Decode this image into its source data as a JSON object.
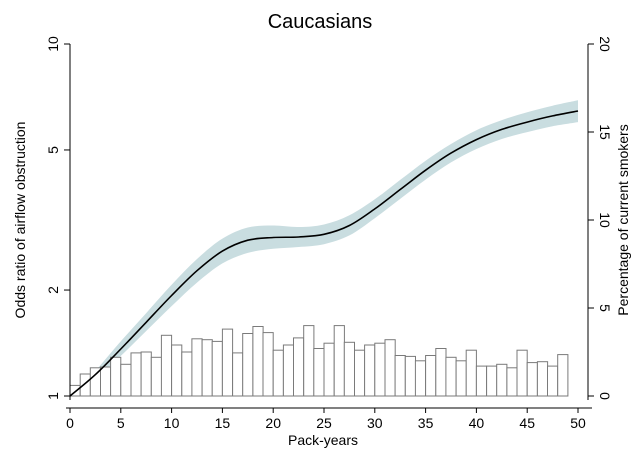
{
  "chart_data": {
    "type": "line",
    "title": "Caucasians",
    "xlabel": "Pack-years",
    "ylabel_left": "Odds ratio of airflow obstruction",
    "ylabel_right": "Percentage of current smokers",
    "x_ticks": [
      0,
      5,
      10,
      15,
      20,
      25,
      30,
      35,
      40,
      45,
      50
    ],
    "y_left_scale": "log",
    "y_left_ticks": [
      1,
      2,
      5,
      10
    ],
    "y_left_lim": [
      1,
      10
    ],
    "y_right_ticks": [
      0,
      5,
      10,
      15,
      20
    ],
    "y_right_lim": [
      0,
      20
    ],
    "xlim": [
      0,
      50
    ],
    "grid": false,
    "colors": {
      "line": "#000000",
      "ci_band": "#c9dde0",
      "bars": "#ffffff",
      "bar_edge": "#7a7a7a"
    },
    "series": [
      {
        "x": [
          0,
          2.5,
          5,
          7.5,
          10,
          12.5,
          15,
          17.5,
          20,
          22.5,
          25,
          27.5,
          30,
          32.5,
          35,
          37.5,
          40,
          42.5,
          45,
          47.5,
          50
        ],
        "or": [
          1.0,
          1.15,
          1.36,
          1.62,
          1.93,
          2.27,
          2.58,
          2.77,
          2.82,
          2.83,
          2.88,
          3.05,
          3.4,
          3.86,
          4.38,
          4.9,
          5.35,
          5.72,
          6.0,
          6.25,
          6.45
        ],
        "lower": [
          1.0,
          1.12,
          1.3,
          1.53,
          1.8,
          2.1,
          2.38,
          2.55,
          2.62,
          2.65,
          2.7,
          2.86,
          3.2,
          3.63,
          4.12,
          4.61,
          5.03,
          5.37,
          5.62,
          5.84,
          6.0
        ],
        "upper": [
          1.0,
          1.18,
          1.43,
          1.72,
          2.07,
          2.45,
          2.8,
          3.01,
          3.05,
          3.02,
          3.07,
          3.26,
          3.62,
          4.11,
          4.66,
          5.2,
          5.69,
          6.08,
          6.4,
          6.68,
          6.92
        ]
      },
      {
        "type": "bar",
        "x": [
          1,
          2,
          3,
          4,
          5,
          6,
          7,
          8,
          9,
          10,
          11,
          12,
          13,
          14,
          15,
          16,
          17,
          18,
          19,
          20,
          21,
          22,
          23,
          24,
          25,
          26,
          27,
          28,
          29,
          30,
          31,
          32,
          33,
          34,
          35,
          36,
          37,
          38,
          39,
          40,
          41,
          42,
          43,
          44,
          45,
          46,
          47,
          48,
          49
        ],
        "values": [
          0.6,
          1.25,
          1.6,
          1.65,
          2.2,
          1.8,
          2.45,
          2.5,
          2.2,
          3.45,
          2.9,
          2.5,
          3.25,
          3.2,
          3.1,
          3.8,
          2.45,
          3.55,
          3.95,
          3.6,
          2.6,
          2.9,
          3.3,
          4.0,
          2.7,
          3.0,
          4.0,
          3.05,
          2.6,
          2.9,
          3.0,
          3.2,
          2.3,
          2.25,
          2.0,
          2.3,
          2.7,
          2.2,
          2.0,
          2.6,
          1.7,
          1.7,
          1.8,
          1.6,
          2.6,
          1.9,
          1.95,
          1.7,
          2.35
        ]
      }
    ]
  }
}
